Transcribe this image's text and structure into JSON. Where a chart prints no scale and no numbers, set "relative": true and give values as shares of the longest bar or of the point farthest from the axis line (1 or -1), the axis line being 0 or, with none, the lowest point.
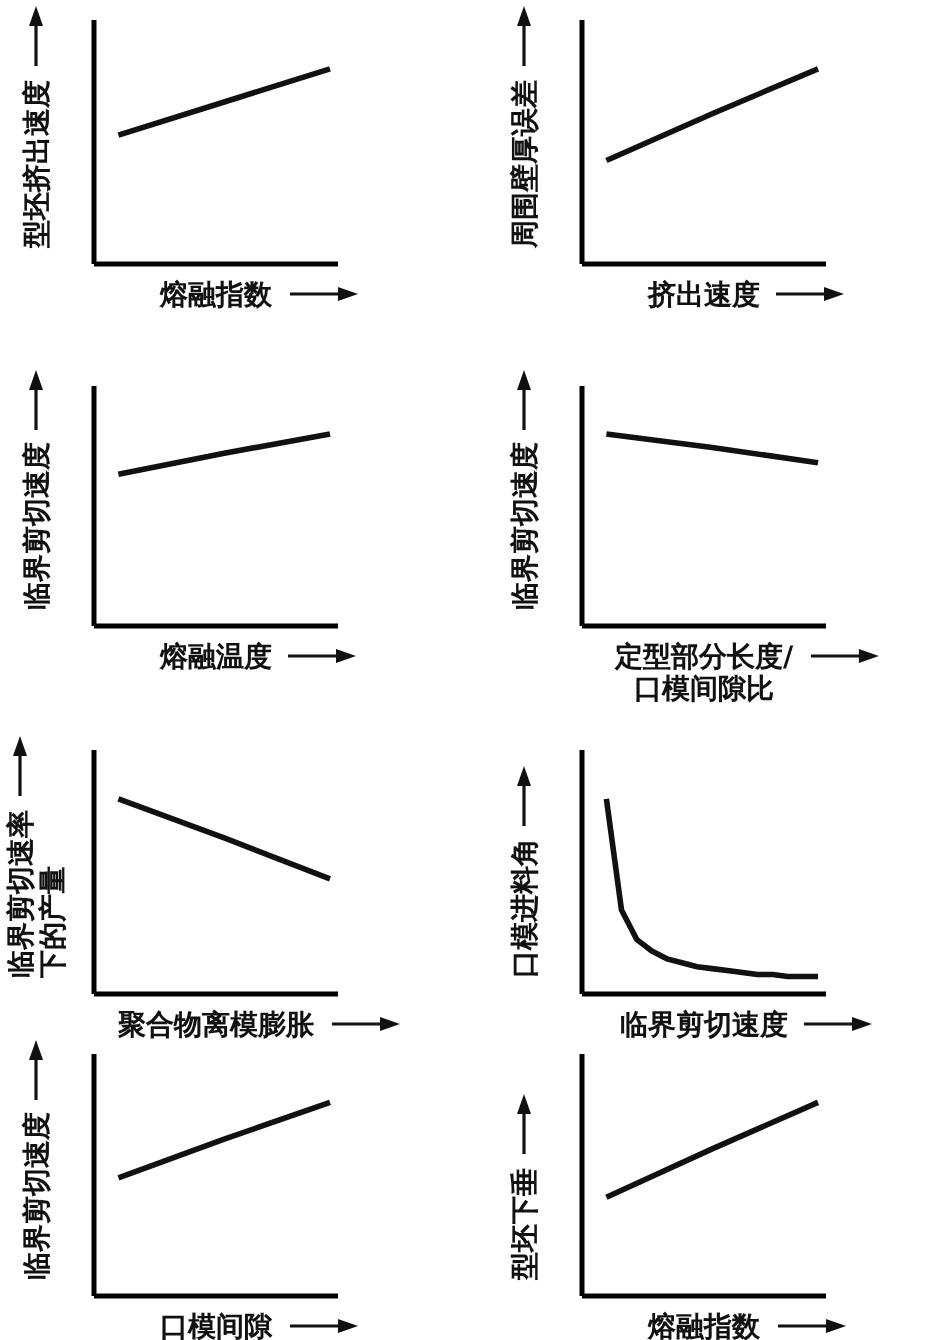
{
  "chart_data": [
    {
      "type": "line",
      "relative": true,
      "ylabel": "型坯挤出速度",
      "xlabel": "熔融指数",
      "categories": [
        null,
        null,
        null
      ],
      "values": [
        0.66,
        0.83,
        1
      ],
      "color": "#111111"
    },
    {
      "type": "line",
      "relative": true,
      "ylabel": "周围壁厚误差",
      "xlabel": "挤出速度",
      "categories": [
        null,
        null,
        null
      ],
      "values": [
        0.53,
        0.77,
        1
      ],
      "color": "#111111"
    },
    {
      "type": "line",
      "relative": true,
      "ylabel": "临界剪切速度",
      "xlabel": "熔融温度",
      "categories": [
        null,
        null,
        null
      ],
      "values": [
        0.79,
        0.9,
        1
      ],
      "color": "#111111"
    },
    {
      "type": "line",
      "relative": true,
      "ylabel": "临界剪切速度",
      "xlabel": "定型部分长度/口模间隙比",
      "categories": [
        null,
        null,
        null
      ],
      "values": [
        1,
        0.93,
        0.85
      ],
      "color": "#111111"
    },
    {
      "type": "line",
      "relative": true,
      "ylabel": "临界剪切速率下的产量",
      "xlabel": "聚合物离模膨胀",
      "categories": [
        null,
        null,
        null
      ],
      "values": [
        1,
        0.8,
        0.59
      ],
      "color": "#111111"
    },
    {
      "type": "line",
      "relative": true,
      "ylabel": "口模进料角",
      "xlabel": "临界剪切速度",
      "categories": [
        null,
        null,
        null,
        null,
        null,
        null,
        null,
        null,
        null,
        null,
        null,
        null,
        null,
        null,
        null
      ],
      "values": [
        1,
        0.43,
        0.28,
        0.22,
        0.18,
        0.16,
        0.14,
        0.13,
        0.12,
        0.11,
        0.1,
        0.1,
        0.09,
        0.09,
        0.09
      ],
      "color": "#111111"
    },
    {
      "type": "line",
      "relative": true,
      "ylabel": "临界剪切速度",
      "xlabel": "口模间隙",
      "categories": [
        null,
        null,
        null
      ],
      "values": [
        0.61,
        0.81,
        1
      ],
      "color": "#111111"
    },
    {
      "type": "line",
      "relative": true,
      "ylabel": "型坯下垂",
      "xlabel": "熔融指数",
      "categories": [
        null,
        null,
        null
      ],
      "values": [
        0.51,
        0.76,
        1
      ],
      "color": "#111111"
    }
  ]
}
